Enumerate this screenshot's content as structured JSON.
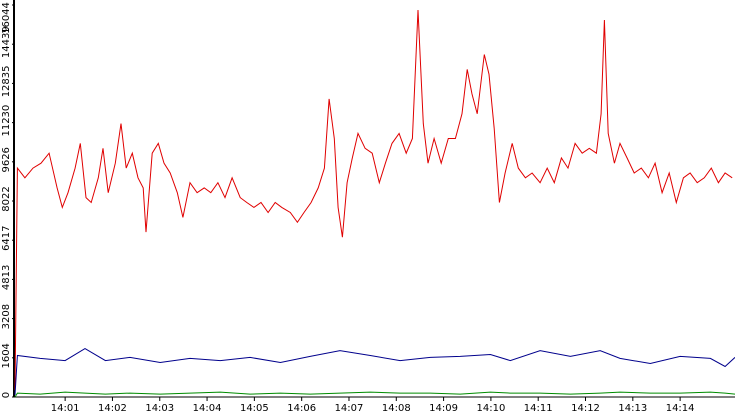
{
  "chart_data": {
    "type": "line",
    "xlim": [
      -0.06,
      15.16
    ],
    "xticks": [
      {
        "value": 1,
        "label": "14:01"
      },
      {
        "value": 2,
        "label": "14:02"
      },
      {
        "value": 3,
        "label": "14:03"
      },
      {
        "value": 4,
        "label": "14:04"
      },
      {
        "value": 5,
        "label": "14:05"
      },
      {
        "value": 6,
        "label": "14:06"
      },
      {
        "value": 7,
        "label": "14:07"
      },
      {
        "value": 8,
        "label": "14:08"
      },
      {
        "value": 9,
        "label": "14:09"
      },
      {
        "value": 10,
        "label": "14:10"
      },
      {
        "value": 11,
        "label": "14:11"
      },
      {
        "value": 12,
        "label": "14:12"
      },
      {
        "value": 13,
        "label": "14:13"
      },
      {
        "value": 14,
        "label": "14:14"
      }
    ],
    "ylim": [
      0,
      16044
    ],
    "yticks": [
      0,
      1604,
      3208,
      4813,
      6417,
      8022,
      9626,
      11230,
      12835,
      14439,
      16044
    ],
    "series": [
      {
        "color": "#e00000",
        "x": [
          -0.06,
          -0.01,
          0.15,
          0.32,
          0.49,
          0.66,
          0.83,
          0.94,
          1.06,
          1.21,
          1.32,
          1.44,
          1.55,
          1.7,
          1.8,
          1.91,
          2.06,
          2.18,
          2.29,
          2.42,
          2.54,
          2.65,
          2.71,
          2.84,
          2.97,
          3.09,
          3.22,
          3.37,
          3.49,
          3.64,
          3.79,
          3.94,
          4.08,
          4.23,
          4.38,
          4.53,
          4.7,
          4.84,
          4.99,
          5.14,
          5.29,
          5.44,
          5.58,
          5.76,
          5.91,
          6.05,
          6.2,
          6.35,
          6.48,
          6.58,
          6.69,
          6.77,
          6.86,
          6.96,
          7.07,
          7.19,
          7.34,
          7.49,
          7.64,
          7.77,
          7.91,
          8.06,
          8.21,
          8.34,
          8.46,
          8.57,
          8.67,
          8.8,
          8.95,
          9.1,
          9.25,
          9.39,
          9.5,
          9.6,
          9.71,
          9.86,
          9.96,
          10.07,
          10.18,
          10.3,
          10.45,
          10.58,
          10.73,
          10.87,
          11.04,
          11.19,
          11.34,
          11.49,
          11.63,
          11.78,
          11.93,
          12.08,
          12.23,
          12.33,
          12.4,
          12.48,
          12.61,
          12.73,
          12.88,
          13.03,
          13.18,
          13.33,
          13.47,
          13.62,
          13.77,
          13.92,
          14.07,
          14.21,
          14.36,
          14.51,
          14.66,
          14.81,
          14.95,
          15.1
        ],
        "values": [
          280,
          9370,
          8970,
          9370,
          9570,
          9980,
          8560,
          7760,
          8360,
          9370,
          10380,
          8160,
          7960,
          8970,
          10180,
          8360,
          9570,
          11190,
          9370,
          9980,
          8970,
          8560,
          6750,
          9980,
          10380,
          9570,
          9170,
          8360,
          7350,
          8770,
          8360,
          8560,
          8360,
          8770,
          8160,
          8970,
          8160,
          7960,
          7760,
          7960,
          7550,
          7960,
          7760,
          7550,
          7150,
          7550,
          7960,
          8560,
          9370,
          12200,
          10580,
          7760,
          6540,
          8770,
          9780,
          10790,
          10180,
          9980,
          8770,
          9570,
          10380,
          10790,
          9980,
          10580,
          15840,
          11190,
          9570,
          10580,
          9570,
          10580,
          10580,
          11590,
          13410,
          12400,
          11590,
          14020,
          13210,
          10990,
          7960,
          9170,
          10380,
          9370,
          8970,
          9170,
          8770,
          9370,
          8770,
          9780,
          9370,
          10380,
          9980,
          10180,
          9980,
          11590,
          15430,
          10790,
          9570,
          10380,
          9780,
          9170,
          9370,
          8970,
          9570,
          8360,
          9170,
          7960,
          8970,
          9170,
          8770,
          8970,
          9370,
          8770,
          9170,
          8970
        ]
      },
      {
        "color": "#00008c",
        "x": [
          -0.06,
          -0.01,
          0.47,
          1.0,
          1.42,
          1.85,
          2.37,
          3.01,
          3.64,
          4.28,
          4.91,
          5.55,
          6.18,
          6.81,
          7.45,
          8.08,
          8.72,
          9.35,
          9.99,
          10.41,
          11.04,
          11.68,
          12.31,
          12.73,
          13.37,
          14.0,
          14.64,
          14.95,
          15.16
        ],
        "values": [
          81,
          1700,
          1580,
          1490,
          1980,
          1490,
          1620,
          1410,
          1580,
          1490,
          1620,
          1410,
          1660,
          1900,
          1700,
          1490,
          1620,
          1660,
          1740,
          1490,
          1900,
          1660,
          1900,
          1580,
          1370,
          1660,
          1580,
          1250,
          1620
        ]
      },
      {
        "color": "#008c00",
        "x": [
          -0.06,
          -0.01,
          0.47,
          1.0,
          1.42,
          1.85,
          2.37,
          3.01,
          3.64,
          4.28,
          4.91,
          5.55,
          6.18,
          6.81,
          7.45,
          8.08,
          8.72,
          9.35,
          9.99,
          10.41,
          11.04,
          11.68,
          12.31,
          12.73,
          13.37,
          14.0,
          14.64,
          14.95,
          15.16
        ],
        "values": [
          0,
          160,
          120,
          200,
          160,
          120,
          160,
          120,
          160,
          200,
          120,
          160,
          120,
          160,
          200,
          160,
          160,
          120,
          200,
          160,
          160,
          120,
          160,
          200,
          160,
          160,
          200,
          160,
          120
        ]
      }
    ]
  }
}
